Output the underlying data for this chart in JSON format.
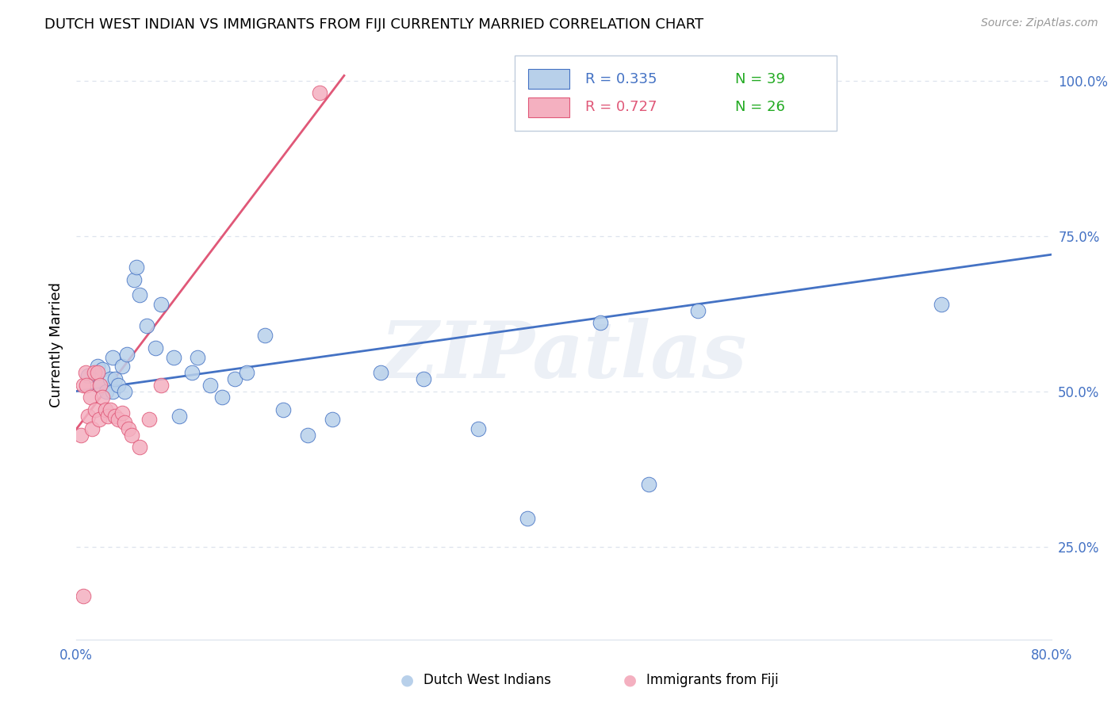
{
  "title": "DUTCH WEST INDIAN VS IMMIGRANTS FROM FIJI CURRENTLY MARRIED CORRELATION CHART",
  "source": "Source: ZipAtlas.com",
  "ylabel": "Currently Married",
  "label_blue": "Dutch West Indians",
  "label_pink": "Immigrants from Fiji",
  "r_blue": "R = 0.335",
  "n_blue": "N = 39",
  "r_pink": "R = 0.727",
  "n_pink": "N = 26",
  "xlim": [
    0.0,
    0.8
  ],
  "ylim": [
    0.1,
    1.05
  ],
  "yticks": [
    0.25,
    0.5,
    0.75,
    1.0
  ],
  "yticklabels": [
    "25.0%",
    "50.0%",
    "75.0%",
    "100.0%"
  ],
  "xtick_positions": [
    0.0,
    0.1,
    0.2,
    0.3,
    0.4,
    0.5,
    0.6,
    0.7,
    0.8
  ],
  "xticklabels": [
    "0.0%",
    "",
    "",
    "",
    "",
    "",
    "",
    "",
    "80.0%"
  ],
  "color_blue_fill": "#b8d0ea",
  "color_blue_edge": "#4472c4",
  "color_pink_fill": "#f4b0c0",
  "color_pink_edge": "#e05878",
  "color_line_blue": "#4472c4",
  "color_line_pink": "#e05878",
  "color_axis_text": "#4472c4",
  "color_n_text": "#22aa22",
  "color_grid": "#dde3ed",
  "watermark_text": "ZIPatlas",
  "blue_x": [
    0.01,
    0.018,
    0.02,
    0.022,
    0.025,
    0.028,
    0.03,
    0.03,
    0.032,
    0.035,
    0.038,
    0.04,
    0.042,
    0.048,
    0.05,
    0.052,
    0.058,
    0.065,
    0.07,
    0.08,
    0.085,
    0.095,
    0.1,
    0.11,
    0.12,
    0.13,
    0.14,
    0.155,
    0.17,
    0.19,
    0.21,
    0.25,
    0.285,
    0.33,
    0.37,
    0.43,
    0.47,
    0.51,
    0.71
  ],
  "blue_y": [
    0.525,
    0.54,
    0.51,
    0.535,
    0.5,
    0.52,
    0.555,
    0.5,
    0.52,
    0.51,
    0.54,
    0.5,
    0.56,
    0.68,
    0.7,
    0.655,
    0.605,
    0.57,
    0.64,
    0.555,
    0.46,
    0.53,
    0.555,
    0.51,
    0.49,
    0.52,
    0.53,
    0.59,
    0.47,
    0.43,
    0.455,
    0.53,
    0.52,
    0.44,
    0.295,
    0.61,
    0.35,
    0.63,
    0.64
  ],
  "pink_x": [
    0.004,
    0.006,
    0.008,
    0.009,
    0.01,
    0.012,
    0.013,
    0.015,
    0.016,
    0.018,
    0.019,
    0.02,
    0.022,
    0.024,
    0.026,
    0.028,
    0.032,
    0.035,
    0.038,
    0.04,
    0.043,
    0.046,
    0.052,
    0.06,
    0.07,
    0.2
  ],
  "pink_y": [
    0.43,
    0.51,
    0.53,
    0.51,
    0.46,
    0.49,
    0.44,
    0.53,
    0.47,
    0.53,
    0.455,
    0.51,
    0.49,
    0.47,
    0.46,
    0.47,
    0.46,
    0.455,
    0.465,
    0.45,
    0.44,
    0.43,
    0.41,
    0.455,
    0.51,
    0.98
  ],
  "lone_pink_x": [
    0.006
  ],
  "lone_pink_y": [
    0.17
  ],
  "blue_line_x": [
    0.0,
    0.8
  ],
  "blue_line_y": [
    0.5,
    0.72
  ],
  "pink_line_x": [
    0.0,
    0.22
  ],
  "pink_line_y": [
    0.438,
    1.008
  ]
}
